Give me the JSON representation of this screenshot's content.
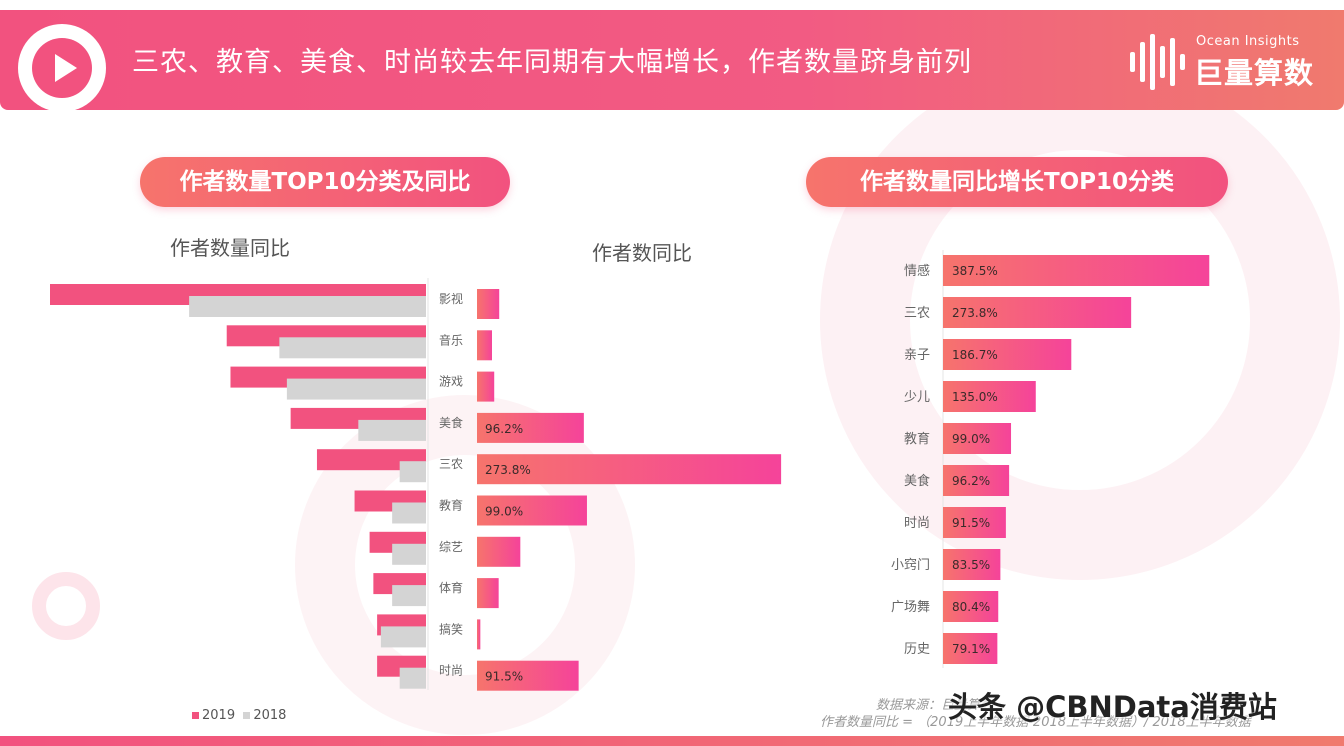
{
  "header": {
    "title": "三农、教育、美食、时尚较去年同期有大幅增长，作者数量跻身前列",
    "brand_en": "Ocean Insights",
    "brand_cn": "巨量算数"
  },
  "left_panel": {
    "pill": "作者数量TOP10分类及同比",
    "label_left": "作者数量同比",
    "label_right": "作者数同比"
  },
  "right_panel": {
    "pill": "作者数量同比增长TOP10分类"
  },
  "footer": {
    "source_line1": "数据来源：巨量算数",
    "source_line2": "作者数量同比 = （2019上半年数据-2018上半年数据）/ 2018上半年数据",
    "watermark": "头条 @CBNData消费站"
  },
  "colors": {
    "accent": "#f2527f",
    "accent_orange": "#f6746c",
    "gray": "#d4d4d4"
  },
  "chart_data": [
    {
      "type": "bar",
      "orientation": "horizontal-mirrored",
      "title": "作者数量",
      "categories": [
        "影视",
        "音乐",
        "游戏",
        "美食",
        "三农",
        "教育",
        "综艺",
        "体育",
        "搞笑",
        "时尚"
      ],
      "series": [
        {
          "name": "2019",
          "color": "#f2527f",
          "values": [
            100,
            53,
            52,
            36,
            29,
            19,
            15,
            14,
            13,
            13
          ]
        },
        {
          "name": "2018",
          "color": "#d4d4d4",
          "values": [
            63,
            39,
            37,
            18,
            7,
            9,
            9,
            9,
            12,
            7
          ]
        }
      ],
      "legend": "bottom-left"
    },
    {
      "type": "bar",
      "orientation": "horizontal",
      "title": "作者数同比",
      "categories": [
        "影视",
        "音乐",
        "游戏",
        "美食",
        "三农",
        "教育",
        "综艺",
        "体育",
        "搞笑",
        "时尚"
      ],
      "values": [
        20.0,
        13.5,
        15.5,
        96.2,
        273.8,
        99.0,
        39.0,
        19.5,
        3.0,
        91.5
      ],
      "data_labels": [
        "",
        "",
        "",
        "96.2%",
        "273.8%",
        "99.0%",
        "",
        "",
        "",
        "91.5%"
      ],
      "xlim": [
        0,
        280
      ]
    },
    {
      "type": "bar",
      "orientation": "horizontal",
      "title": "作者数量同比增长TOP10分类",
      "categories": [
        "情感",
        "三农",
        "亲子",
        "少儿",
        "教育",
        "美食",
        "时尚",
        "小窍门",
        "广场舞",
        "历史"
      ],
      "values": [
        387.5,
        273.8,
        186.7,
        135.0,
        99.0,
        96.2,
        91.5,
        83.5,
        80.4,
        79.1
      ],
      "data_labels": [
        "387.5%",
        "273.8%",
        "186.7%",
        "135.0%",
        "99.0%",
        "96.2%",
        "91.5%",
        "83.5%",
        "80.4%",
        "79.1%"
      ],
      "xlim": [
        0,
        390
      ]
    }
  ]
}
